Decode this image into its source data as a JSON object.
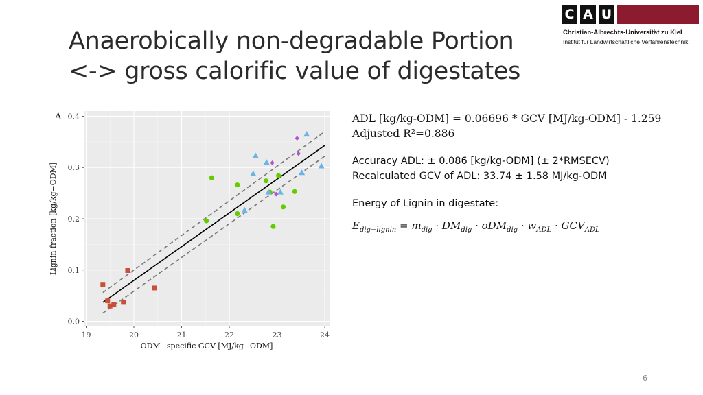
{
  "slide": {
    "title": "Anaerobically non-degradable Portion <-> gross calorific value of digestates",
    "page_number": "6"
  },
  "logo": {
    "letters": [
      "C",
      "A",
      "U"
    ],
    "line1": "Christian-Albrechts-Universität zu Kiel",
    "line2": "Institut für Landwirtschaftliche Verfahrenstechnik",
    "colors": {
      "band": "#8c1b2f",
      "letters_bg": "#111111"
    }
  },
  "text": {
    "regression": "ADL [kg/kg-ODM] = 0.06696 * GCV [MJ/kg-ODM] - 1.259",
    "r2": "Adjusted R²=0.886",
    "accuracy": "Accuracy ADL: ± 0.086 [kg/kg-ODM] (± 2*RMSECV)",
    "recalc": "Recalculated GCV of ADL: 33.74 ± 1.58 MJ/kg-ODM",
    "energy_label": "Energy of Lignin in digestate:"
  },
  "formula": {
    "lhs": "E",
    "lhs_sub": "dig−lignin",
    "terms": [
      {
        "var": "m",
        "sub": "dig"
      },
      {
        "var": "DM",
        "sub": "dig"
      },
      {
        "var": "oDM",
        "sub": "dig"
      },
      {
        "var": "w",
        "sub": "ADL"
      },
      {
        "var": "GCV",
        "sub": "ADL"
      }
    ]
  },
  "chart_data": {
    "type": "scatter",
    "panel_label": "A",
    "xlabel": "ODM−specific GCV [MJ/kg−ODM]",
    "ylabel": "Lignin fraction [kg/kg−ODM]",
    "xlim": [
      18.95,
      24.1
    ],
    "ylim": [
      -0.01,
      0.41
    ],
    "x_ticks": [
      19,
      20,
      21,
      22,
      23,
      24
    ],
    "y_ticks": [
      0.0,
      0.1,
      0.2,
      0.3,
      0.4
    ],
    "y_tick_labels": [
      "0.0",
      "0.1",
      "0.2",
      "0.3",
      "0.4"
    ],
    "grid": true,
    "background": "#ebebeb",
    "regression_line": {
      "x": [
        19.35,
        24.0
      ],
      "y": [
        0.037,
        0.343
      ]
    },
    "confidence_band": [
      {
        "x": [
          19.35,
          24.0
        ],
        "y": [
          0.056,
          0.37
        ]
      },
      {
        "x": [
          19.35,
          24.0
        ],
        "y": [
          0.016,
          0.322
        ]
      }
    ],
    "series": [
      {
        "marker": "square",
        "color": "#c8503a",
        "points": [
          [
            19.35,
            0.072
          ],
          [
            19.45,
            0.04
          ],
          [
            19.5,
            0.03
          ],
          [
            19.58,
            0.033
          ],
          [
            19.78,
            0.037
          ],
          [
            19.87,
            0.099
          ],
          [
            20.43,
            0.065
          ]
        ]
      },
      {
        "marker": "circle",
        "color": "#66cc00",
        "points": [
          [
            21.52,
            0.196
          ],
          [
            21.63,
            0.28
          ],
          [
            22.17,
            0.266
          ],
          [
            22.17,
            0.21
          ],
          [
            22.77,
            0.274
          ],
          [
            22.85,
            0.252
          ],
          [
            22.92,
            0.185
          ],
          [
            23.03,
            0.284
          ],
          [
            23.13,
            0.223
          ],
          [
            23.37,
            0.253
          ]
        ]
      },
      {
        "marker": "triangle",
        "color": "#6ab4e8",
        "points": [
          [
            22.32,
            0.217
          ],
          [
            22.5,
            0.288
          ],
          [
            22.55,
            0.323
          ],
          [
            22.78,
            0.31
          ],
          [
            22.82,
            0.252
          ],
          [
            23.07,
            0.252
          ],
          [
            23.52,
            0.29
          ],
          [
            23.62,
            0.365
          ],
          [
            23.93,
            0.303
          ]
        ]
      },
      {
        "marker": "diamond",
        "color": "#b44dd1",
        "points": [
          [
            22.9,
            0.309
          ],
          [
            22.98,
            0.248
          ],
          [
            23.42,
            0.357
          ],
          [
            23.45,
            0.327
          ]
        ]
      }
    ]
  }
}
